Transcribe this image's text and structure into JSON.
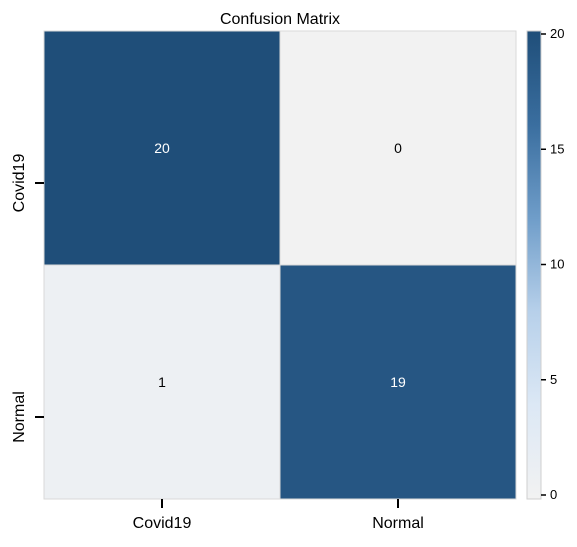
{
  "chart_data": {
    "type": "heatmap",
    "title": "Confusion Matrix",
    "x_categories": [
      "Covid19",
      "Normal"
    ],
    "y_categories": [
      "Covid19",
      "Normal"
    ],
    "values": [
      [
        20,
        0
      ],
      [
        1,
        19
      ]
    ],
    "color_range": [
      0,
      20
    ],
    "colorbar_ticks": [
      "0",
      "5",
      "10",
      "15",
      "20"
    ],
    "colormap": [
      "#f2f2f2",
      "#dce8f5",
      "#b7d0ea",
      "#6f9dc9",
      "#3a6e9f",
      "#1f4e79"
    ],
    "xlabel": "",
    "ylabel": ""
  }
}
